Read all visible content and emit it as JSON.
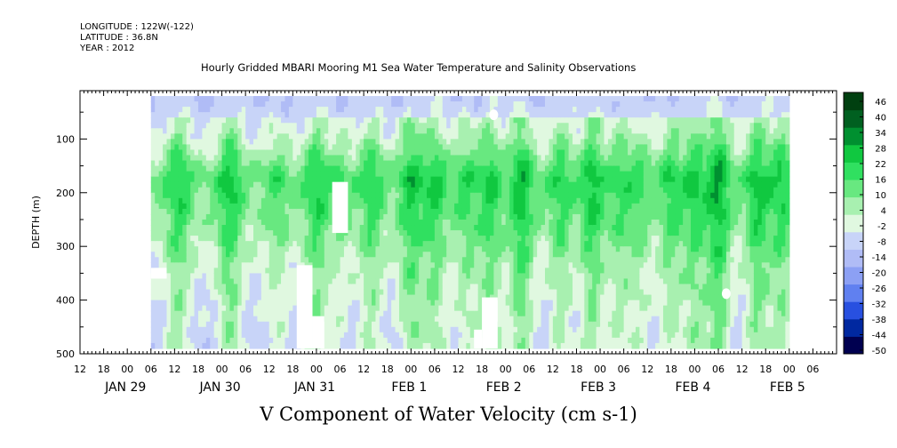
{
  "meta": {
    "longitude": "LONGITUDE : 122W(-122)",
    "latitude": "LATITUDE : 36.8N",
    "year": "YEAR : 2012"
  },
  "chart_data": {
    "type": "heatmap",
    "title": "Hourly Gridded MBARI Mooring M1 Sea Water Temperature and Salinity Observations",
    "subtitle": "V Component of Water Velocity (cm s-1)",
    "ylabel": "DEPTH (m)",
    "ylim": [
      500,
      10
    ],
    "y_inverted": true,
    "y_ticks": [
      100,
      200,
      300,
      400,
      500
    ],
    "x_hour_ticks": [
      "12",
      "18",
      "00",
      "06",
      "12",
      "18",
      "00",
      "06",
      "12",
      "18",
      "00",
      "06",
      "12",
      "18",
      "00",
      "06",
      "12",
      "18",
      "00",
      "06",
      "12",
      "18",
      "00",
      "06",
      "12",
      "18",
      "00",
      "06",
      "12",
      "18",
      "00",
      "06"
    ],
    "date_labels": [
      "JAN 29",
      "JAN 30",
      "JAN 31",
      "FEB  1",
      "FEB  2",
      "FEB  3",
      "FEB  4",
      "FEB  5"
    ],
    "colorbar_labels": [
      "46",
      "40",
      "34",
      "28",
      "22",
      "16",
      "10",
      "4",
      "-2",
      "-8",
      "-14",
      "-20",
      "-26",
      "-32",
      "-38",
      "-44",
      "-50"
    ],
    "colorbar_range": [
      -50,
      50
    ],
    "colormap": [
      "#000050",
      "#0028a0",
      "#2850e0",
      "#6080f0",
      "#8ca0f4",
      "#b0bcf6",
      "#c8d4f8",
      "#e0f8e0",
      "#a8f0b0",
      "#68e880",
      "#30e060",
      "#10c840",
      "#009030",
      "#006020",
      "#004010"
    ],
    "data_time_range_hours": [
      18,
      180
    ],
    "depth_profile_top_to_bottom": [
      -12,
      -4,
      12,
      6,
      -2,
      -6,
      -8
    ],
    "pulses": [
      {
        "hour": 25,
        "value": 14
      },
      {
        "hour": 38,
        "value": 16
      },
      {
        "hour": 50,
        "value": 8
      },
      {
        "hour": 60,
        "value": 14
      },
      {
        "hour": 66,
        "value": 6
      },
      {
        "hour": 74,
        "value": 12
      },
      {
        "hour": 84,
        "value": 16
      },
      {
        "hour": 90,
        "value": 14
      },
      {
        "hour": 98,
        "value": 10
      },
      {
        "hour": 104,
        "value": 14
      },
      {
        "hour": 112,
        "value": 18
      },
      {
        "hour": 122,
        "value": 12
      },
      {
        "hour": 130,
        "value": 16
      },
      {
        "hour": 137,
        "value": 10
      },
      {
        "hour": 142,
        "value": 8
      },
      {
        "hour": 150,
        "value": 12
      },
      {
        "hour": 156,
        "value": 14
      },
      {
        "hour": 162,
        "value": 20
      },
      {
        "hour": 172,
        "value": 16
      },
      {
        "hour": 178,
        "value": 14
      }
    ],
    "missing_blocks": [
      {
        "t0": 18,
        "t1": 22,
        "d0": 340,
        "d1": 360
      },
      {
        "t0": 64,
        "t1": 68,
        "d0": 180,
        "d1": 275
      },
      {
        "t0": 55,
        "t1": 59,
        "d0": 335,
        "d1": 490
      },
      {
        "t0": 59,
        "t1": 62,
        "d0": 430,
        "d1": 490
      },
      {
        "t0": 102,
        "t1": 106,
        "d0": 395,
        "d1": 490
      },
      {
        "t0": 100,
        "t1": 102,
        "d0": 455,
        "d1": 490
      }
    ],
    "missing_dots": [
      {
        "t": 105,
        "d": 55
      },
      {
        "t": 164,
        "d": 388
      }
    ],
    "grid": false
  }
}
